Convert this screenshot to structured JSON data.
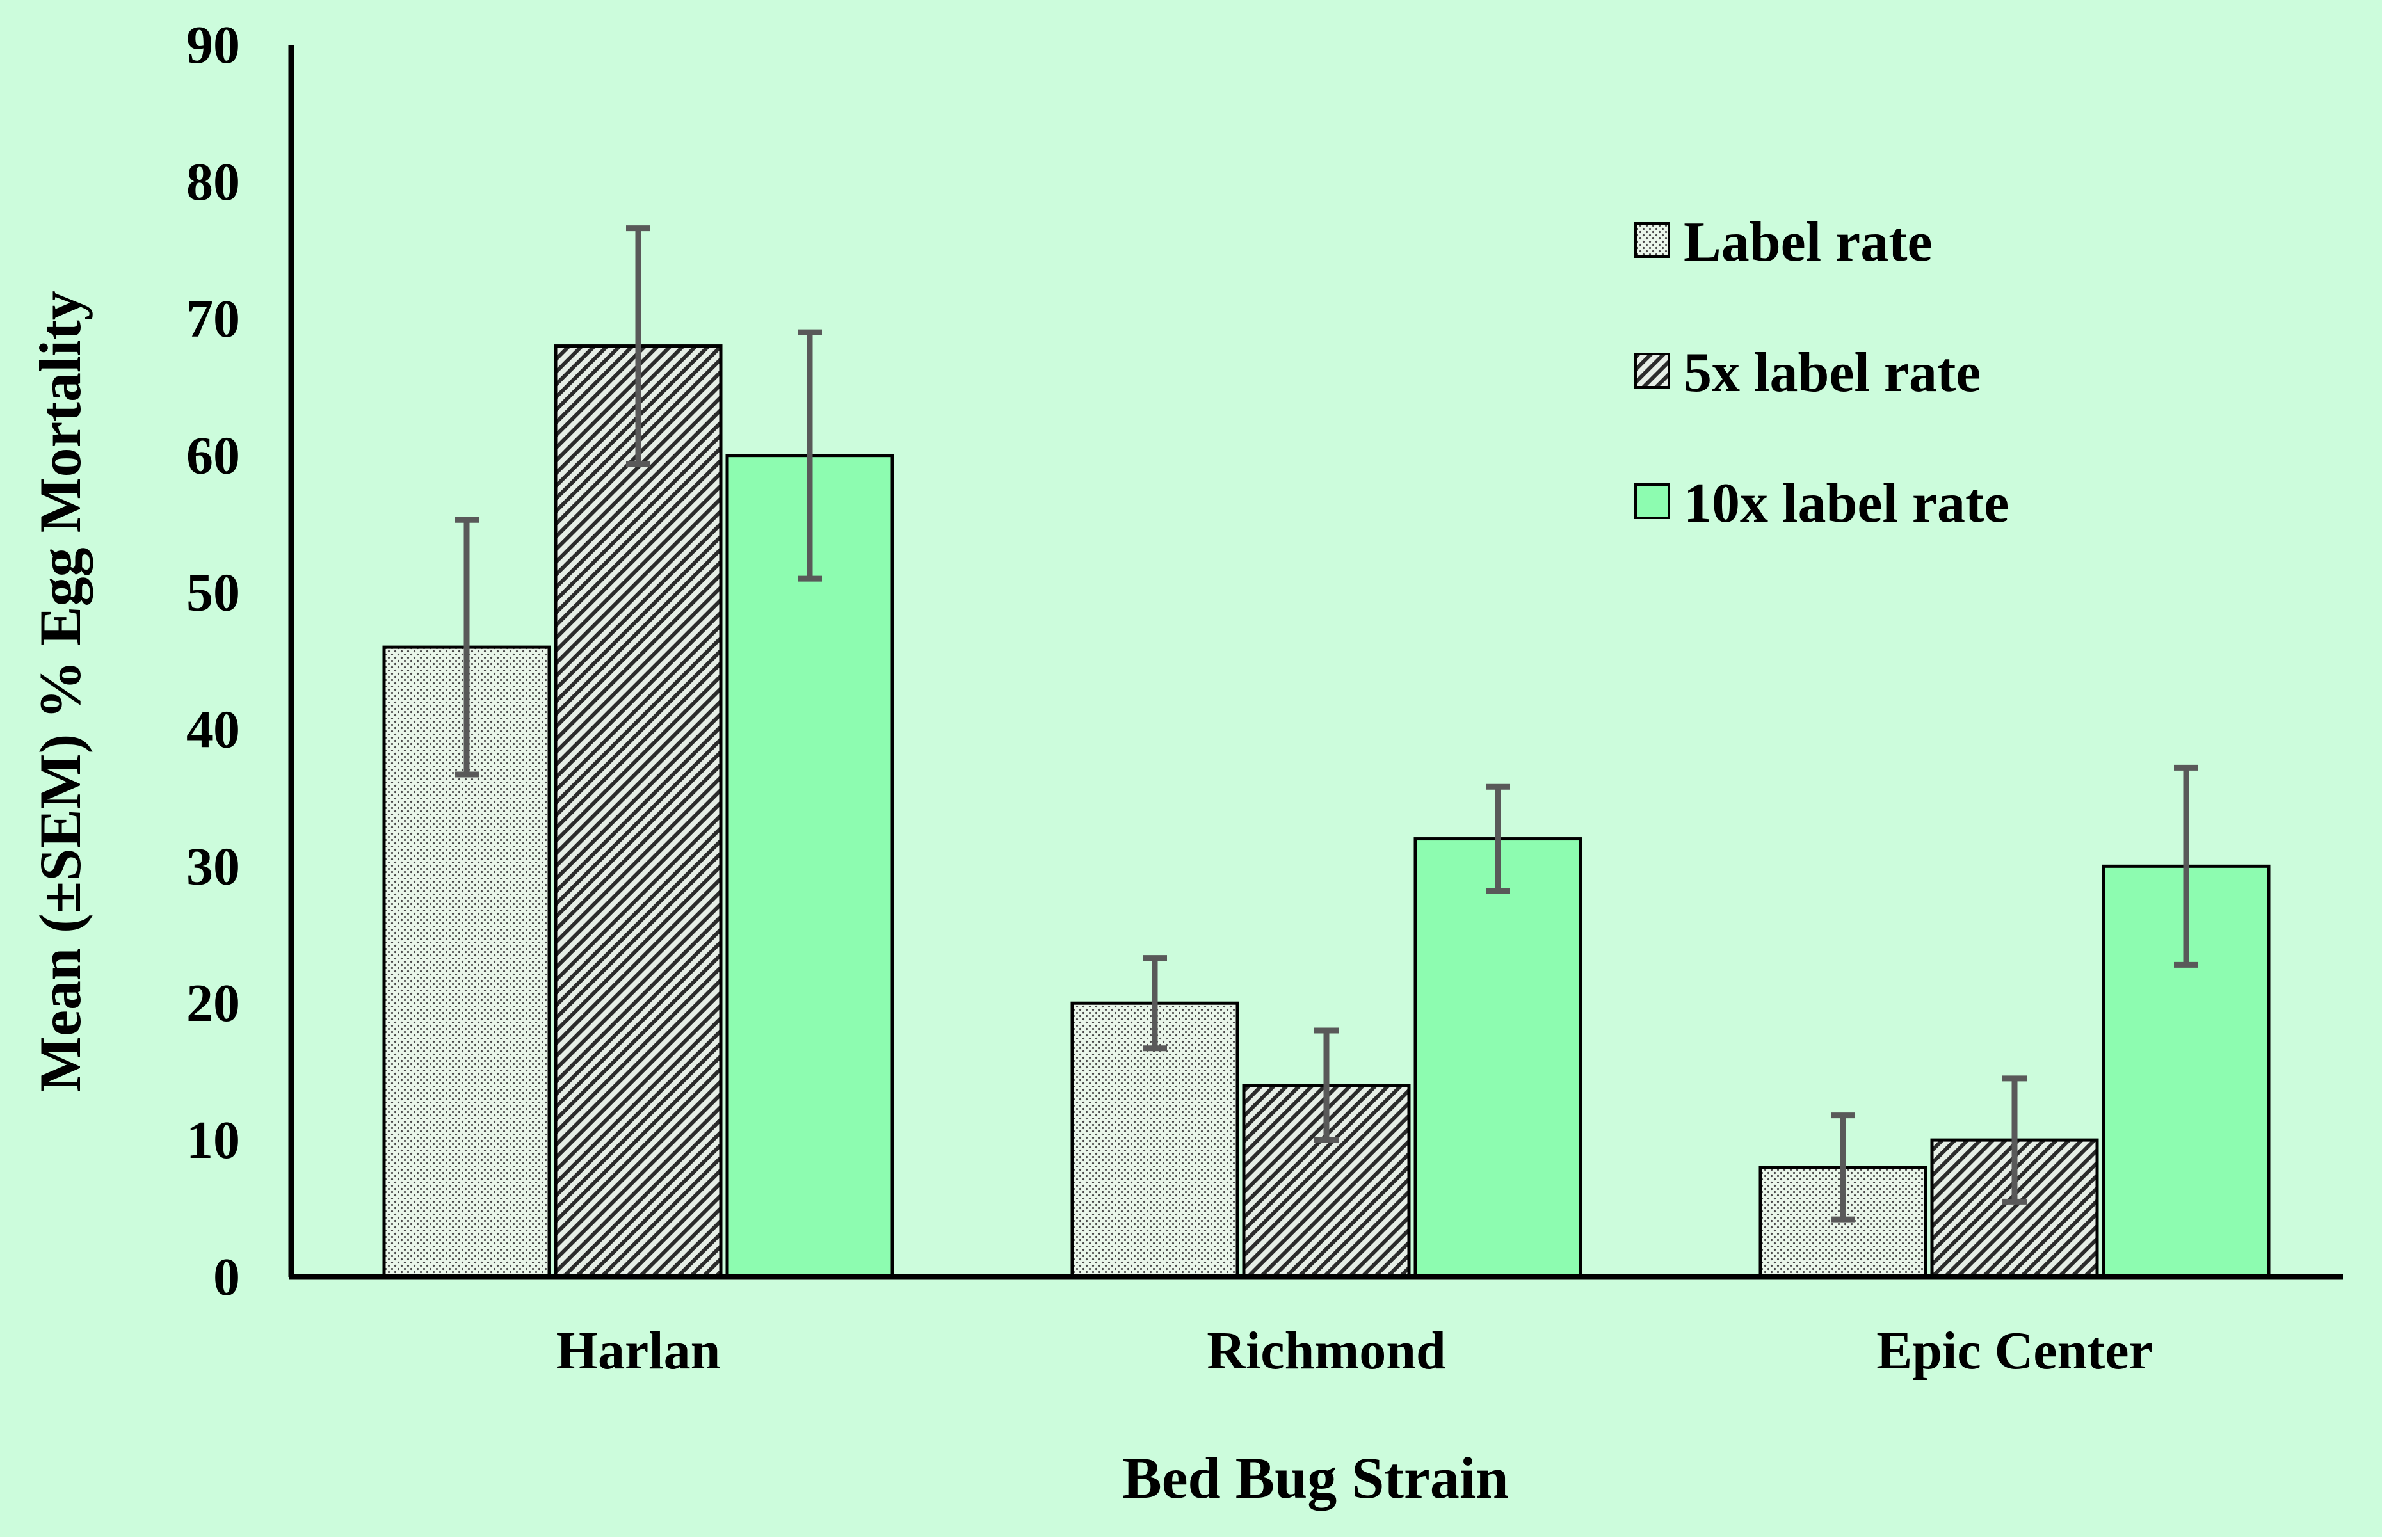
{
  "chart_data": {
    "type": "bar",
    "title": "",
    "xlabel": "Bed Bug Strain",
    "ylabel": "Mean (±SEM) % Egg Mortality",
    "categories": [
      "Harlan",
      "Richmond",
      "Epic Center"
    ],
    "ylim": [
      0,
      90
    ],
    "yticks": [
      "0",
      "10",
      "20",
      "30",
      "40",
      "50",
      "60",
      "70",
      "80",
      "90"
    ],
    "series": [
      {
        "name": "Label rate",
        "pattern": "dots",
        "values": [
          46,
          20,
          8
        ],
        "sem": [
          9.3,
          3.3,
          3.8
        ]
      },
      {
        "name": "5x label rate",
        "pattern": "diagonal-hatch",
        "values": [
          68,
          14,
          10
        ],
        "sem": [
          8.6,
          4.0,
          4.5
        ]
      },
      {
        "name": "10x label rate",
        "pattern": "solid",
        "values": [
          60,
          32,
          30
        ],
        "sem": [
          9.0,
          3.8,
          7.2
        ]
      }
    ],
    "legend_position": "top-right",
    "grid": false,
    "colors": {
      "background": "#ccfcdc",
      "bar_fill_light": "#e9f5ea",
      "bar_fill_solid": "#8dfcb0",
      "bar_outline": "#000000",
      "error_bar": "#595959",
      "axis": "#000000"
    }
  }
}
